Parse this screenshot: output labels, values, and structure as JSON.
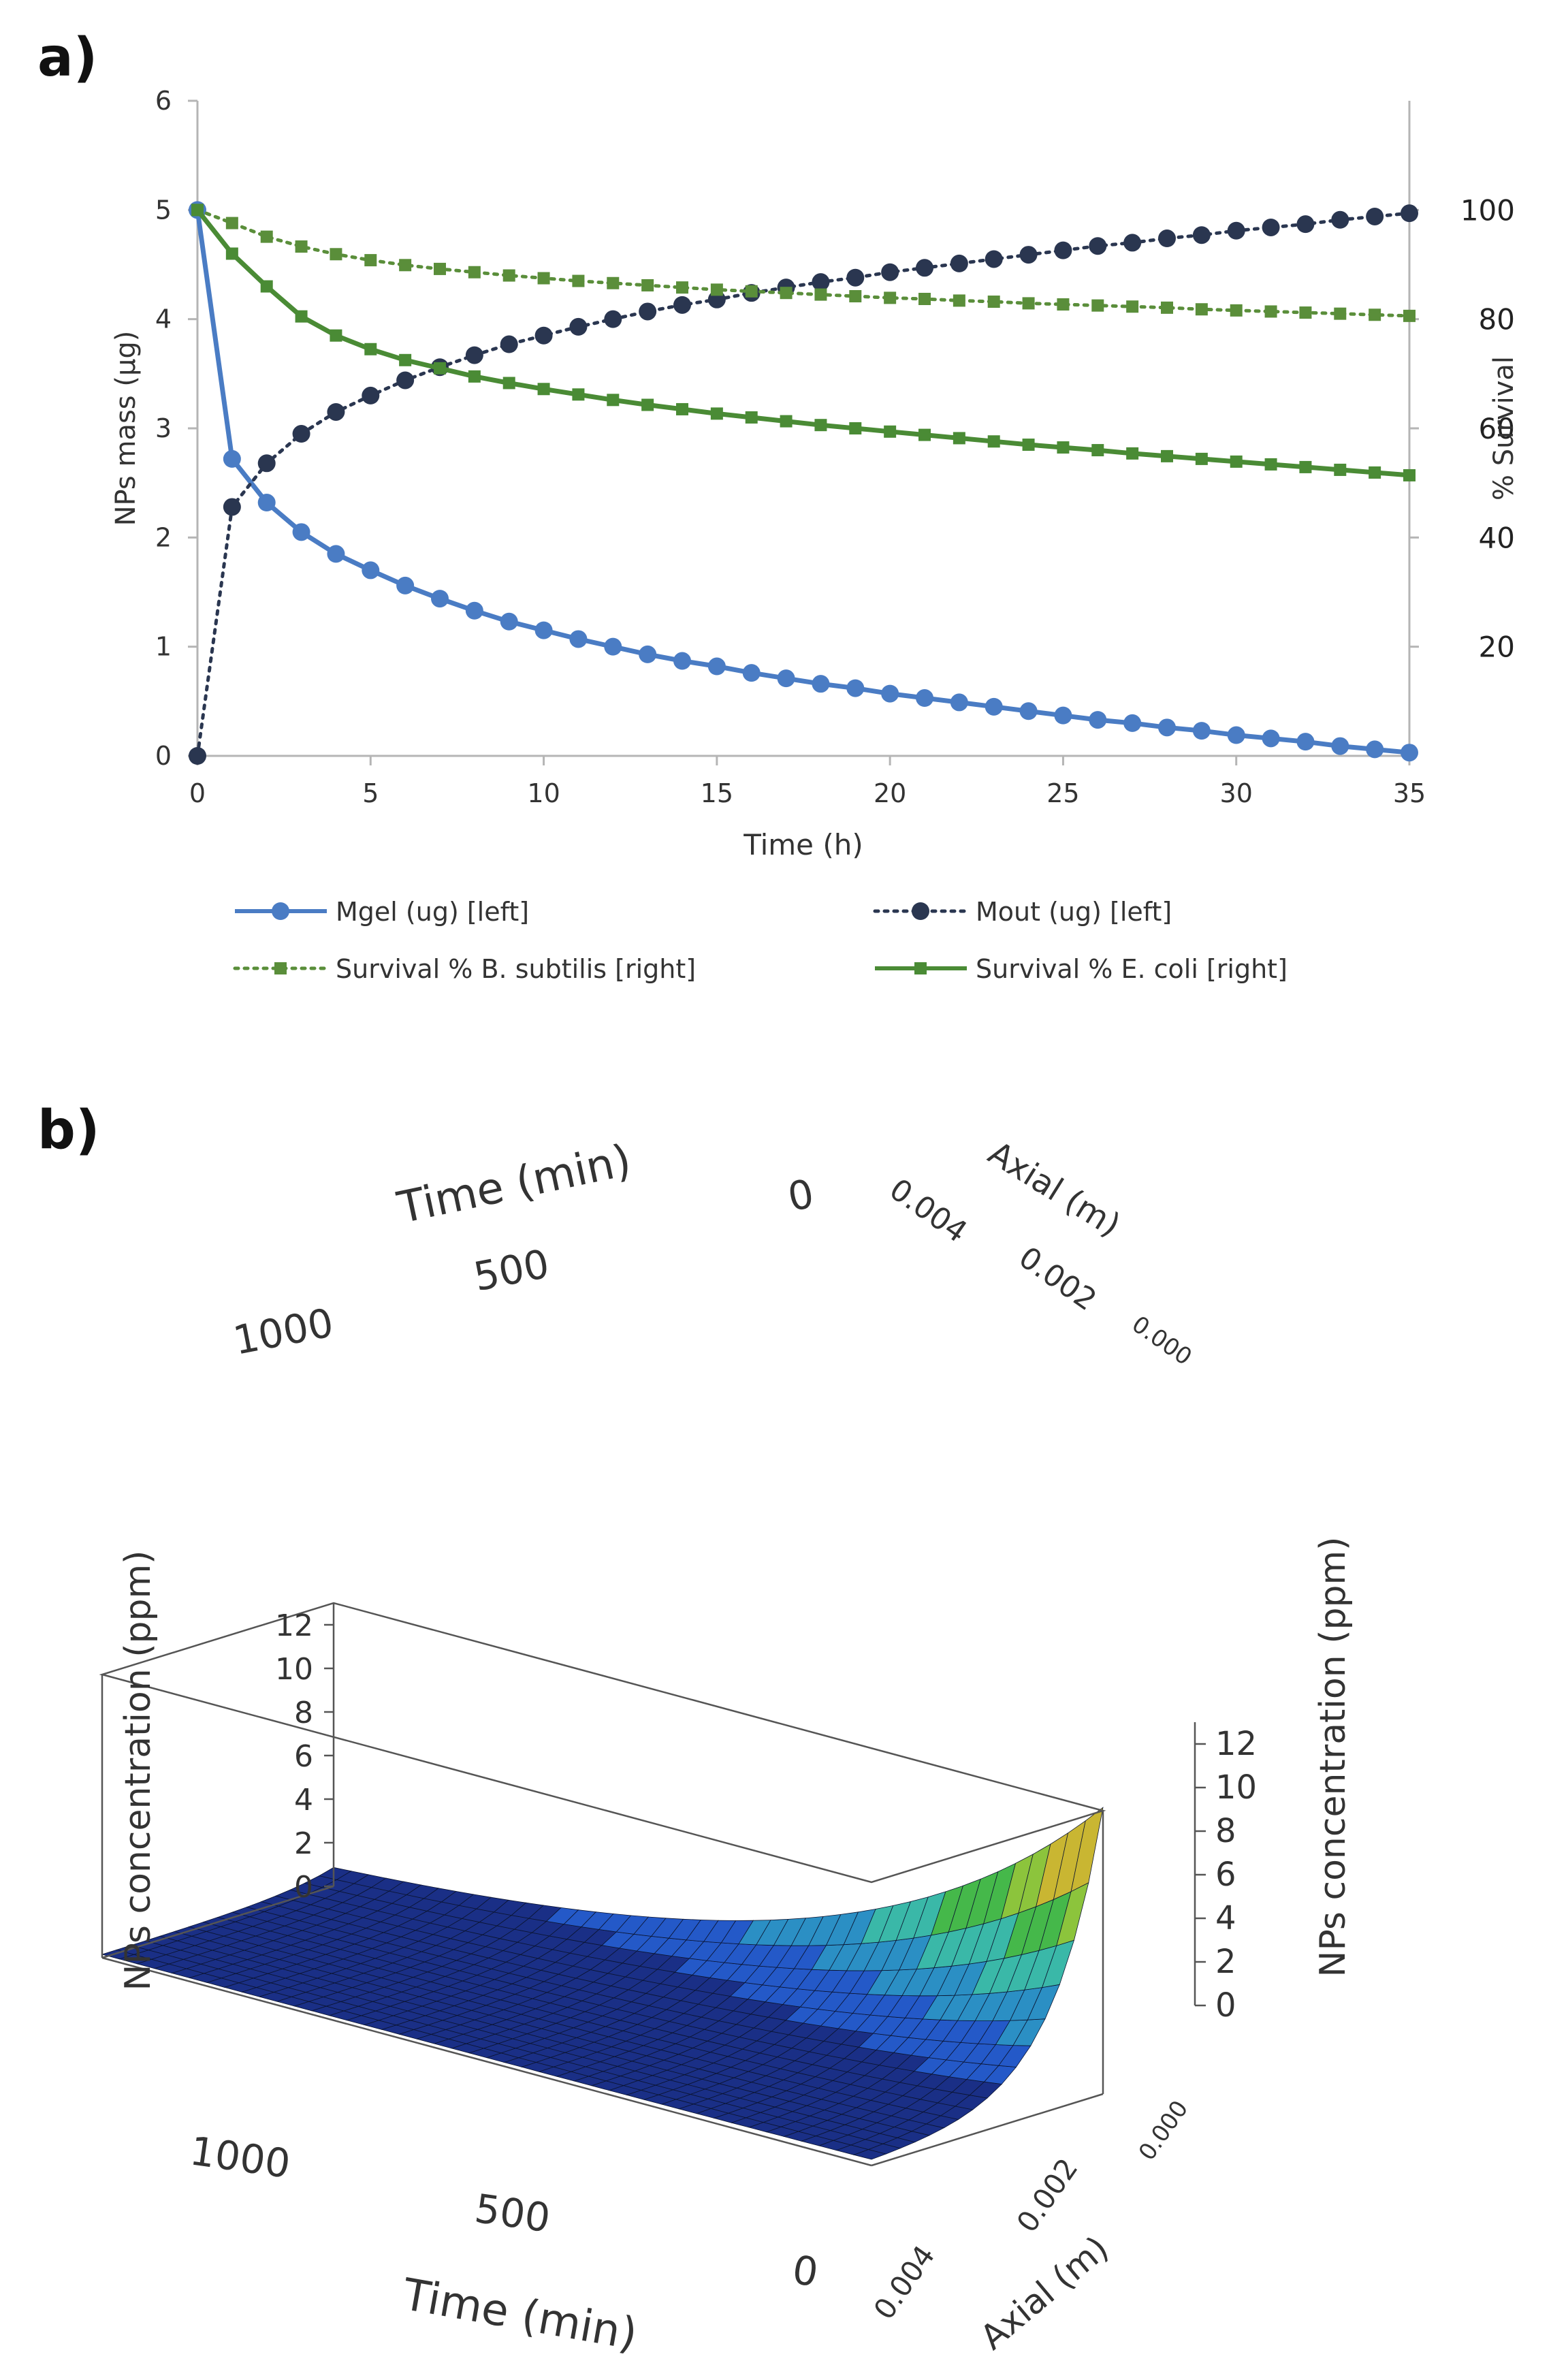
{
  "panel_a": {
    "label": "a)"
  },
  "panel_b": {
    "label": "b)"
  },
  "chart_data": [
    {
      "type": "line",
      "xlabel": "Time (h)",
      "ylabel": "NPs mass (µg)",
      "ylabel_right": "% Survival",
      "xlim": [
        0,
        35
      ],
      "ylim": [
        0,
        6
      ],
      "ylim_right": [
        0,
        120
      ],
      "x_ticks": [
        0,
        5,
        10,
        15,
        20,
        25,
        30,
        35
      ],
      "y_ticks": [
        0,
        1,
        2,
        3,
        4,
        5,
        6
      ],
      "y_ticks_right": [
        20,
        40,
        60,
        80,
        100
      ],
      "grid": false,
      "legend_position": "bottom",
      "x": [
        0,
        1,
        2,
        3,
        4,
        5,
        6,
        7,
        8,
        9,
        10,
        11,
        12,
        13,
        14,
        15,
        16,
        17,
        18,
        19,
        20,
        21,
        22,
        23,
        24,
        25,
        26,
        27,
        28,
        29,
        30,
        31,
        32,
        33,
        34,
        35
      ],
      "series": [
        {
          "name": "Mgel (ug) [left]",
          "axis": "left",
          "color": "#4a7cc4",
          "style": "solid-circle",
          "values": [
            5.0,
            2.72,
            2.32,
            2.05,
            1.85,
            1.7,
            1.56,
            1.44,
            1.33,
            1.23,
            1.15,
            1.07,
            1.0,
            0.93,
            0.87,
            0.82,
            0.76,
            0.71,
            0.66,
            0.62,
            0.57,
            0.53,
            0.49,
            0.45,
            0.41,
            0.37,
            0.33,
            0.3,
            0.26,
            0.23,
            0.19,
            0.16,
            0.13,
            0.09,
            0.06,
            0.03
          ]
        },
        {
          "name": "Mout (ug) [left]",
          "axis": "left",
          "color": "#2a3650",
          "style": "dotted-circle",
          "values": [
            0.0,
            2.28,
            2.68,
            2.95,
            3.15,
            3.3,
            3.44,
            3.56,
            3.67,
            3.77,
            3.85,
            3.93,
            4.0,
            4.07,
            4.13,
            4.18,
            4.24,
            4.29,
            4.34,
            4.38,
            4.43,
            4.47,
            4.51,
            4.55,
            4.59,
            4.63,
            4.67,
            4.7,
            4.74,
            4.77,
            4.81,
            4.84,
            4.87,
            4.91,
            4.94,
            4.97
          ]
        },
        {
          "name": "Survival % B. subtilis [right]",
          "axis": "right",
          "color": "#5a8e3a",
          "style": "dotted-square",
          "values": [
            100,
            97.6,
            95.1,
            93.3,
            91.9,
            90.8,
            89.9,
            89.2,
            88.6,
            88.0,
            87.5,
            87.0,
            86.6,
            86.2,
            85.8,
            85.4,
            85.1,
            84.8,
            84.5,
            84.2,
            83.9,
            83.7,
            83.4,
            83.2,
            82.9,
            82.7,
            82.5,
            82.3,
            82.1,
            81.8,
            81.6,
            81.4,
            81.2,
            81.0,
            80.8,
            80.6
          ]
        },
        {
          "name": "Survival % E. coli [right]",
          "axis": "right",
          "color": "#4a8b35",
          "style": "solid-square",
          "values": [
            100,
            92.0,
            86.0,
            80.5,
            77.0,
            74.5,
            72.5,
            71.0,
            69.5,
            68.3,
            67.2,
            66.2,
            65.2,
            64.3,
            63.5,
            62.7,
            62.0,
            61.3,
            60.6,
            60.0,
            59.4,
            58.8,
            58.2,
            57.6,
            57.0,
            56.5,
            56.0,
            55.4,
            54.9,
            54.4,
            53.9,
            53.4,
            52.9,
            52.4,
            51.9,
            51.4
          ]
        }
      ]
    },
    {
      "type": "surface3d",
      "xlabel": "Time (min)",
      "ylabel": "Axial (m)",
      "zlabel": "NPs concentration (ppm)",
      "x_ticks_top": [
        "1000",
        "500",
        "0"
      ],
      "x_ticks_bottom": [
        "1000",
        "500",
        "0"
      ],
      "y_ticks_top": [
        "0.004",
        "0.002",
        "0.000"
      ],
      "y_ticks_bottom": [
        "0.004",
        "0.002",
        "0.000"
      ],
      "z_ticks_left": [
        "0",
        "2",
        "4",
        "6",
        "8",
        "10",
        "12"
      ],
      "z_ticks_right": [
        "0",
        "2",
        "4",
        "6",
        "8",
        "10",
        "12"
      ],
      "zlim": [
        0,
        13
      ],
      "peak": {
        "time_min": 0,
        "axial_m": 0.0,
        "concentration_ppm": 13
      },
      "colormap": [
        "#1a2f86",
        "#2459c8",
        "#2b8fc4",
        "#3ab8a8",
        "#45b84a",
        "#8cc43c",
        "#c9b632",
        "#d0603a"
      ]
    }
  ]
}
